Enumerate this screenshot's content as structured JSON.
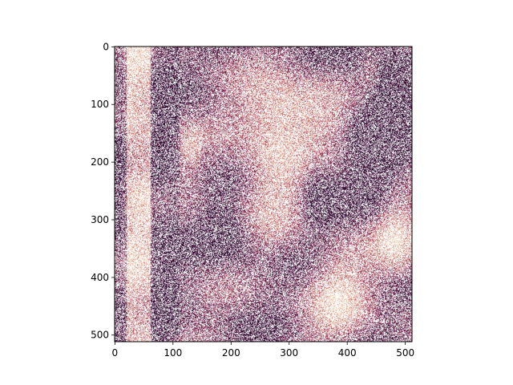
{
  "chart_data": {
    "type": "heatmap",
    "title": "",
    "xlabel": "",
    "ylabel": "",
    "image_size": [
      512,
      512
    ],
    "xlim": [
      0,
      511
    ],
    "ylim": [
      511,
      0
    ],
    "y_inverted": true,
    "grid": false,
    "legend": "none",
    "x_ticks": [
      0,
      100,
      200,
      300,
      400,
      500
    ],
    "y_ticks": [
      0,
      100,
      200,
      300,
      400,
      500
    ],
    "x_tick_labels": [
      "0",
      "100",
      "200",
      "300",
      "400",
      "500"
    ],
    "y_tick_labels": [
      "0",
      "100",
      "200",
      "300",
      "400",
      "500"
    ],
    "colormap": [
      "#2a0a2e",
      "#5e1c4a",
      "#9c3f5d",
      "#c97a72",
      "#e5b49a",
      "#f6e6c6"
    ],
    "background_color": "#ffffff",
    "pixel_coverage": 0.55
  }
}
